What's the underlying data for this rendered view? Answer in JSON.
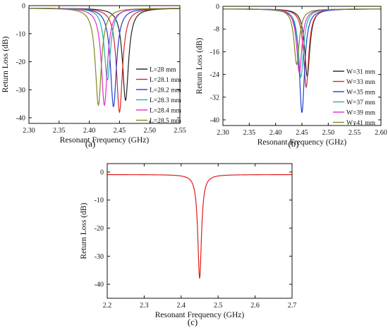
{
  "chart_data": [
    {
      "type": "line",
      "caption": "(a)",
      "xlabel": "Resonant Frequency (GHz)",
      "ylabel": "Return Loss (dB)",
      "xlim": [
        2.3,
        2.55
      ],
      "ylim": [
        -42,
        0
      ],
      "xticks": [
        "2.30",
        "2.35",
        "2.40",
        "2.45",
        "2.50",
        "2.55"
      ],
      "yticks": [
        "0",
        "-10",
        "-20",
        "-30",
        "-40"
      ],
      "grid": false,
      "legend_position": "bottom-right",
      "series": [
        {
          "name": "L=28 mm",
          "color": "#222222",
          "f0": 2.46,
          "depth": 33.8
        },
        {
          "name": "L=28.1 mm",
          "color": "#d62728",
          "f0": 2.45,
          "depth": 38.0
        },
        {
          "name": "L=28.2 mm",
          "color": "#1f3fd6",
          "f0": 2.44,
          "depth": 36.0
        },
        {
          "name": "L=28.3 mm",
          "color": "#20b2aa",
          "f0": 2.43,
          "depth": 26.5
        },
        {
          "name": "L=28.4 mm",
          "color": "#e22cc6",
          "f0": 2.425,
          "depth": 35.5
        },
        {
          "name": "L=28.5 mm",
          "color": "#7d8a1e",
          "f0": 2.415,
          "depth": 35.5
        }
      ]
    },
    {
      "type": "line",
      "caption": "(b)",
      "xlabel": "Resonant  Frequency (GHz)",
      "ylabel": "Return Loss (dB)",
      "xlim": [
        2.3,
        2.6
      ],
      "ylim": [
        -42,
        0
      ],
      "xticks": [
        "2.30",
        "2.35",
        "2.40",
        "2.45",
        "2.50",
        "2.55",
        "2.60"
      ],
      "yticks": [
        "0",
        "-8",
        "-16",
        "-24",
        "-32",
        "-40"
      ],
      "grid": false,
      "legend_position": "bottom-right",
      "series": [
        {
          "name": "W=31 mm",
          "color": "#222222",
          "f0": 2.46,
          "depth": 24.8
        },
        {
          "name": "W=33 mm",
          "color": "#d62728",
          "f0": 2.458,
          "depth": 28.5
        },
        {
          "name": "W=35 mm",
          "color": "#1f3fd6",
          "f0": 2.45,
          "depth": 37.5
        },
        {
          "name": "W=37 mm",
          "color": "#20b2aa",
          "f0": 2.448,
          "depth": 25.0
        },
        {
          "name": "W=39 mm",
          "color": "#e22cc6",
          "f0": 2.445,
          "depth": 23.5
        },
        {
          "name": "W=41 mm",
          "color": "#7d8a1e",
          "f0": 2.44,
          "depth": 20.5
        }
      ]
    },
    {
      "type": "line",
      "caption": "(c)",
      "xlabel": "Resonant Frequency (GHz)",
      "ylabel": "Return Loss (dB)",
      "xlim": [
        2.2,
        2.7
      ],
      "ylim": [
        -45,
        3
      ],
      "xticks": [
        "2.2",
        "2.3",
        "2.4",
        "2.5",
        "2.6",
        "2.7"
      ],
      "yticks": [
        "0",
        "-10",
        "-20",
        "-30",
        "-40"
      ],
      "grid": false,
      "legend_position": "none",
      "series": [
        {
          "name": "",
          "color": "#e01b1b",
          "f0": 2.45,
          "depth": 38.0
        }
      ]
    }
  ]
}
